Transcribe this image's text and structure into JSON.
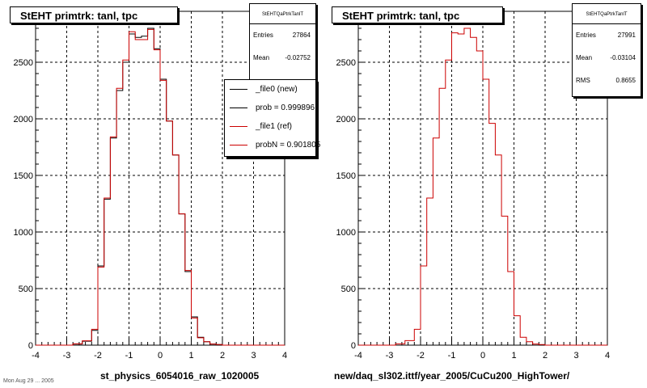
{
  "left_panel": {
    "title": "StEHT primtrk: tanl, tpc",
    "stats": {
      "name": "StEHTQaPtrkTanlT",
      "entries_label": "Entries",
      "entries_value": "27864",
      "mean_label": "Mean",
      "mean_value": "-0.02752"
    },
    "legend": [
      {
        "label": "_file0 (new)",
        "color": "#000000"
      },
      {
        "label": "prob = 0.999896",
        "color": "#000000"
      },
      {
        "label": "_file1 (ref)",
        "color": "#cc0000"
      },
      {
        "label": "probN = 0.901805",
        "color": "#cc0000"
      }
    ],
    "footer": "st_physics_6054016_raw_1020005"
  },
  "right_panel": {
    "title": "StEHT primtrk: tanl, tpc",
    "stats": {
      "name": "StEHTQaPtrkTanlT",
      "entries_label": "Entries",
      "entries_value": "27991",
      "mean_label": "Mean",
      "mean_value": "-0.03104",
      "rms_label": "RMS",
      "rms_value": "0.8655"
    },
    "footer": "new/daq_sl302.ittf/year_2005/CuCu200_HighTower/"
  },
  "bottom_left_text": "Mon Aug 29 ... 2005",
  "chart_data": [
    {
      "type": "line",
      "title": "StEHT primtrk: tanl, tpc",
      "xlabel": "",
      "ylabel": "",
      "xlim": [
        -4,
        4
      ],
      "ylim": [
        0,
        2950
      ],
      "x_ticks": [
        -4,
        -3,
        -2,
        -1,
        0,
        1,
        2,
        3,
        4
      ],
      "y_ticks": [
        0,
        500,
        1000,
        1500,
        2000,
        2500
      ],
      "grid": true,
      "bin_edges": [
        -4.0,
        -3.7,
        -3.4,
        -3.1,
        -2.8,
        -2.5,
        -2.2,
        -2.0,
        -1.8,
        -1.6,
        -1.4,
        -1.2,
        -1.0,
        -0.8,
        -0.6,
        -0.4,
        -0.2,
        0.0,
        0.2,
        0.4,
        0.6,
        0.8,
        1.0,
        1.2,
        1.4,
        1.6,
        1.8,
        2.0,
        2.2,
        2.5,
        2.8,
        3.1,
        3.4,
        3.7,
        4.0
      ],
      "series": [
        {
          "name": "_file0 (new)",
          "color": "#000000",
          "values": [
            0,
            0,
            0,
            0,
            10,
            35,
            130,
            700,
            1290,
            1830,
            2250,
            2500,
            2750,
            2720,
            2730,
            2800,
            2620,
            2350,
            1980,
            1680,
            1160,
            650,
            250,
            70,
            30,
            10,
            5,
            0,
            0,
            0,
            0,
            0,
            0,
            0
          ]
        },
        {
          "name": "_file1 (ref)",
          "color": "#cc0000",
          "values": [
            0,
            0,
            0,
            0,
            12,
            38,
            140,
            690,
            1300,
            1840,
            2270,
            2520,
            2770,
            2700,
            2700,
            2790,
            2610,
            2340,
            1980,
            1680,
            1160,
            660,
            240,
            65,
            30,
            10,
            5,
            0,
            0,
            0,
            0,
            0,
            0,
            0
          ]
        }
      ]
    },
    {
      "type": "line",
      "title": "StEHT primtrk: tanl, tpc",
      "xlabel": "",
      "ylabel": "",
      "xlim": [
        -4,
        4
      ],
      "ylim": [
        0,
        2950
      ],
      "x_ticks": [
        -4,
        -3,
        -2,
        -1,
        0,
        1,
        2,
        3,
        4
      ],
      "y_ticks": [
        0,
        500,
        1000,
        1500,
        2000,
        2500
      ],
      "grid": true,
      "bin_edges": [
        -4.0,
        -3.7,
        -3.4,
        -3.1,
        -2.8,
        -2.5,
        -2.2,
        -2.0,
        -1.8,
        -1.6,
        -1.4,
        -1.2,
        -1.0,
        -0.8,
        -0.6,
        -0.4,
        -0.2,
        0.0,
        0.2,
        0.4,
        0.6,
        0.8,
        1.0,
        1.2,
        1.4,
        1.6,
        1.8,
        2.0,
        2.2,
        2.5,
        2.8,
        3.1,
        3.4,
        3.7,
        4.0
      ],
      "series": [
        {
          "name": "",
          "color": "#cc0000",
          "values": [
            0,
            0,
            0,
            0,
            12,
            40,
            140,
            700,
            1300,
            1830,
            2270,
            2520,
            2760,
            2750,
            2800,
            2720,
            2600,
            2350,
            1960,
            1680,
            1140,
            650,
            260,
            70,
            30,
            10,
            5,
            0,
            0,
            0,
            0,
            0,
            0,
            0
          ]
        }
      ]
    }
  ]
}
